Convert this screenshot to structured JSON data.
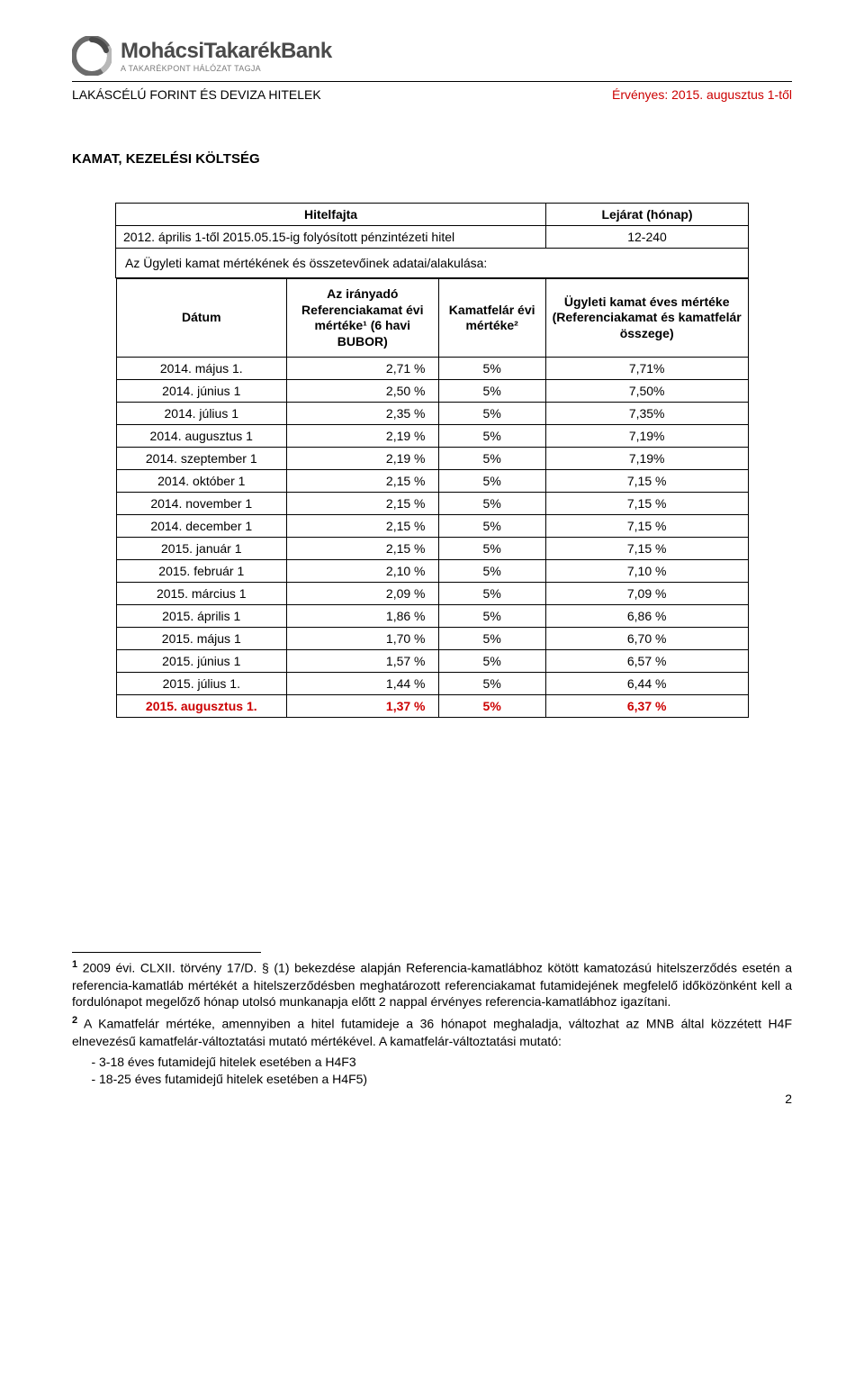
{
  "logo": {
    "main": "MohácsiTakarékBank",
    "sub": "A TAKARÉKPONT HÁLÓZAT TAGJA",
    "icon_color": "#6b6b6b"
  },
  "subheader": {
    "left": "LAKÁSCÉLÚ FORINT ÉS DEVIZA HITELEK",
    "right": "Érvényes: 2015. augusztus 1-től",
    "right_color": "#cc0000"
  },
  "section_title": "KAMAT, KEZELÉSI KÖLTSÉG",
  "table1": {
    "headers": [
      "Hitelfajta",
      "Lejárat (hónap)"
    ],
    "row": [
      "2012. április 1-től 2015.05.15-ig folyósított pénzintézeti hitel",
      "12-240"
    ],
    "meta": "Az Ügyleti kamat mértékének és összetevőinek adatai/alakulása:"
  },
  "table2": {
    "headers": [
      "Dátum",
      "Az irányadó Referenciakamat évi mértéke¹ (6 havi BUBOR)",
      "Kamatfelár évi mértéke²",
      "Ügyleti kamat éves mértéke (Referenciakamat és kamatfelár összege)"
    ],
    "col_widths": [
      "27%",
      "24%",
      "17%",
      "32%"
    ],
    "rows": [
      {
        "date": "2014. május 1.",
        "ref": "2,71 %",
        "km": "5%",
        "sum": "7,71%",
        "hl": false
      },
      {
        "date": "2014. június 1",
        "ref": "2,50 %",
        "km": "5%",
        "sum": "7,50%",
        "hl": false
      },
      {
        "date": "2014. július 1",
        "ref": "2,35 %",
        "km": "5%",
        "sum": "7,35%",
        "hl": false
      },
      {
        "date": "2014. augusztus 1",
        "ref": "2,19 %",
        "km": "5%",
        "sum": "7,19%",
        "hl": false
      },
      {
        "date": "2014. szeptember 1",
        "ref": "2,19 %",
        "km": "5%",
        "sum": "7,19%",
        "hl": false
      },
      {
        "date": "2014. október 1",
        "ref": "2,15 %",
        "km": "5%",
        "sum": "7,15 %",
        "hl": false
      },
      {
        "date": "2014. november 1",
        "ref": "2,15 %",
        "km": "5%",
        "sum": "7,15 %",
        "hl": false
      },
      {
        "date": "2014. december 1",
        "ref": "2,15 %",
        "km": "5%",
        "sum": "7,15 %",
        "hl": false
      },
      {
        "date": "2015. január 1",
        "ref": "2,15 %",
        "km": "5%",
        "sum": "7,15 %",
        "hl": false
      },
      {
        "date": "2015. február 1",
        "ref": "2,10 %",
        "km": "5%",
        "sum": "7,10 %",
        "hl": false
      },
      {
        "date": "2015. március 1",
        "ref": "2,09 %",
        "km": "5%",
        "sum": "7,09 %",
        "hl": false
      },
      {
        "date": "2015. április 1",
        "ref": "1,86 %",
        "km": "5%",
        "sum": "6,86 %",
        "hl": false
      },
      {
        "date": "2015. május 1",
        "ref": "1,70 %",
        "km": "5%",
        "sum": "6,70 %",
        "hl": false
      },
      {
        "date": "2015. június 1",
        "ref": "1,57 %",
        "km": "5%",
        "sum": "6,57 %",
        "hl": false
      },
      {
        "date": "2015. július 1.",
        "ref": "1,44 %",
        "km": "5%",
        "sum": "6,44 %",
        "hl": false
      },
      {
        "date": "2015. augusztus 1.",
        "ref": "1,37 %",
        "km": "5%",
        "sum": "6,37 %",
        "hl": true
      }
    ],
    "highlight_color": "#cc0000"
  },
  "footnotes": {
    "fn1": "2009 évi. CLXII. törvény 17/D. § (1) bekezdése alapján Referencia-kamatlábhoz kötött kamatozású hitelszerződés esetén a referencia-kamatláb mértékét a hitelszerződésben meghatározott referenciakamat futamidejének megfelelő időközönként kell a fordulónapot megelőző hónap utolsó munkanapja előtt 2 nappal érvényes referencia-kamatlábhoz igazítani.",
    "fn2_main": "A Kamatfelár mértéke, amennyiben a hitel futamideje a 36 hónapot meghaladja, változhat az MNB által közzétett H4F elnevezésű kamatfelár-változtatási mutató mértékével. A kamatfelár-változtatási mutató:",
    "fn2_items": [
      "3-18 éves futamidejű hitelek esetében a H4F3",
      "18-25 éves futamidejű hitelek esetében a H4F5)"
    ]
  },
  "page_number": "2"
}
